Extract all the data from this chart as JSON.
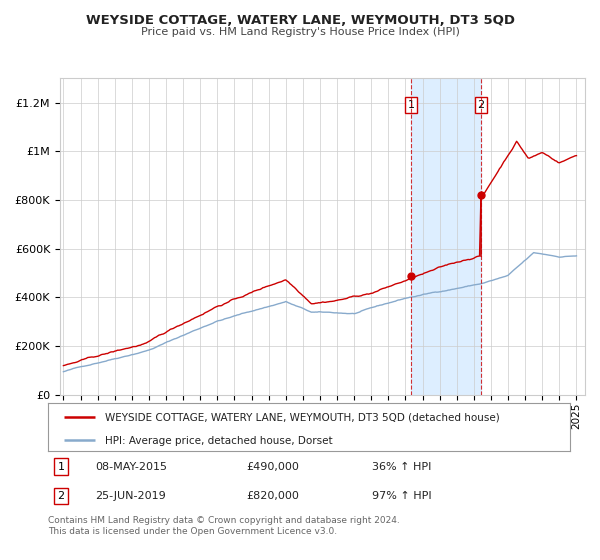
{
  "title": "WEYSIDE COTTAGE, WATERY LANE, WEYMOUTH, DT3 5QD",
  "subtitle": "Price paid vs. HM Land Registry's House Price Index (HPI)",
  "legend_line1": "WEYSIDE COTTAGE, WATERY LANE, WEYMOUTH, DT3 5QD (detached house)",
  "legend_line2": "HPI: Average price, detached house, Dorset",
  "transaction1_date": "08-MAY-2015",
  "transaction1_price": 490000,
  "transaction1_hpi": "36% ↑ HPI",
  "transaction2_date": "25-JUN-2019",
  "transaction2_price": 820000,
  "transaction2_hpi": "97% ↑ HPI",
  "red_line_color": "#cc0000",
  "blue_line_color": "#88aacc",
  "bg_color": "#ffffff",
  "grid_color": "#cccccc",
  "highlight_color": "#ddeeff",
  "footer": "Contains HM Land Registry data © Crown copyright and database right 2024.\nThis data is licensed under the Open Government Licence v3.0.",
  "ylim": [
    0,
    1300000
  ],
  "t1_year": 2015,
  "t1_month": 5,
  "t2_year": 2019,
  "t2_month": 6
}
